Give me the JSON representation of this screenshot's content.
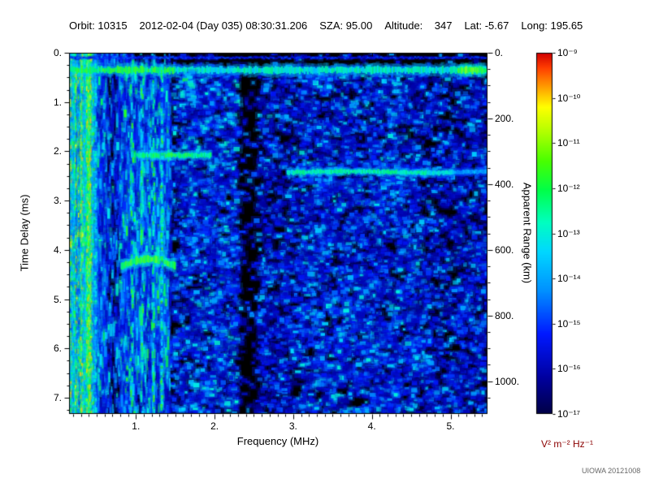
{
  "header": {
    "items": [
      "Orbit: 10315",
      "2012-02-04 (Day 035) 08:30:31.206",
      "SZA: 95.00",
      "Altitude:    347",
      "Lat: -5.67",
      "Long: 195.65"
    ]
  },
  "footer": {
    "credit": "UIOWA 20121008"
  },
  "colors": {
    "unit_label": "#8b0000",
    "plot_background": "#000000",
    "text": "#000000"
  },
  "chart_data": {
    "type": "heatmap",
    "subtype": "radar-ionogram-spectrogram",
    "xlabel": "Frequency (MHz)",
    "ylabel_left": "Time Delay (ms)",
    "ylabel_right": "Apparent Range (km)",
    "x_range": [
      0.15,
      5.47
    ],
    "y_range": [
      0,
      7.33
    ],
    "x_minor_step": 0.1,
    "y_minor_step": 0.25,
    "km_per_ms": 150,
    "y_right_minor_step_km": 50,
    "x_ticks": [
      {
        "v": 1,
        "label": "1."
      },
      {
        "v": 2,
        "label": "2."
      },
      {
        "v": 3,
        "label": "3."
      },
      {
        "v": 4,
        "label": "4."
      },
      {
        "v": 5,
        "label": "5."
      }
    ],
    "y_ticks_left": [
      {
        "v": 0,
        "label": "0."
      },
      {
        "v": 1,
        "label": "1."
      },
      {
        "v": 2,
        "label": "2."
      },
      {
        "v": 3,
        "label": "3."
      },
      {
        "v": 4,
        "label": "4."
      },
      {
        "v": 5,
        "label": "5."
      },
      {
        "v": 6,
        "label": "6."
      },
      {
        "v": 7,
        "label": "7."
      }
    ],
    "y_ticks_right": [
      {
        "km": 0,
        "label": "0."
      },
      {
        "km": 200,
        "label": "200."
      },
      {
        "km": 400,
        "label": "400."
      },
      {
        "km": 600,
        "label": "600."
      },
      {
        "km": 800,
        "label": "800."
      },
      {
        "km": 1000,
        "label": "1000."
      }
    ],
    "colorbar": {
      "max": "10⁻⁹",
      "min": "10⁻¹⁷",
      "ticks": [
        "10⁻⁹",
        "10⁻¹⁰",
        "10⁻¹¹",
        "10⁻¹²",
        "10⁻¹³",
        "10⁻¹⁴",
        "10⁻¹⁵",
        "10⁻¹⁶",
        "10⁻¹⁷"
      ],
      "unit": "V² m⁻² Hz⁻¹"
    },
    "colormap": [
      [
        0.0,
        "#000046"
      ],
      [
        0.1,
        "#0000a0"
      ],
      [
        0.22,
        "#0018ff"
      ],
      [
        0.34,
        "#0090ff"
      ],
      [
        0.45,
        "#00d8ff"
      ],
      [
        0.53,
        "#00ffc0"
      ],
      [
        0.62,
        "#00ff48"
      ],
      [
        0.7,
        "#48ff00"
      ],
      [
        0.78,
        "#b0ff00"
      ],
      [
        0.85,
        "#ffff00"
      ],
      [
        0.9,
        "#ffa800"
      ],
      [
        0.96,
        "#ff3c00"
      ],
      [
        1.0,
        "#d00000"
      ]
    ],
    "background_color": "#000000",
    "noise": {
      "seed": 20121008,
      "samples": 30000,
      "segments": [
        {
          "f0": 0.15,
          "f1": 0.45,
          "density": 1.0,
          "vmax": 0.85
        },
        {
          "f0": 0.45,
          "f1": 0.62,
          "density": 0.8,
          "vmax": 0.62
        },
        {
          "f0": 0.62,
          "f1": 0.8,
          "density": 0.32,
          "vmax": 0.55
        },
        {
          "f0": 0.8,
          "f1": 1.42,
          "density": 0.78,
          "vmax": 0.66
        },
        {
          "f0": 1.42,
          "f1": 1.58,
          "density": 0.3,
          "vmax": 0.5
        },
        {
          "f0": 1.58,
          "f1": 2.3,
          "density": 0.46,
          "vmax": 0.52
        },
        {
          "f0": 2.3,
          "f1": 2.56,
          "density": 0.07,
          "vmax": 0.4
        },
        {
          "f0": 2.56,
          "f1": 3.1,
          "density": 0.32,
          "vmax": 0.46
        },
        {
          "f0": 3.1,
          "f1": 4.6,
          "density": 0.42,
          "vmax": 0.5
        },
        {
          "f0": 4.6,
          "f1": 5.05,
          "density": 0.27,
          "vmax": 0.46
        },
        {
          "f0": 5.05,
          "f1": 5.47,
          "density": 0.34,
          "vmax": 0.46
        }
      ],
      "striations": {
        "f0": 0.15,
        "f1": 0.5,
        "step": 0.016,
        "vmin": 0.35,
        "vmax": 0.85
      },
      "green_columns": [
        0.95,
        1.08,
        1.22
      ]
    },
    "features": [
      {
        "kind": "hband",
        "name": "zero-delay surface band",
        "t": 0.35,
        "f0": 0.15,
        "f1": 5.47,
        "h": 7,
        "v": 0.52
      },
      {
        "kind": "hband",
        "name": "faint top-edge line",
        "t": 0.1,
        "f0": 0.15,
        "f1": 5.47,
        "h": 2,
        "v": 0.22
      },
      {
        "kind": "htrace",
        "name": "ionospheric echo trace",
        "t": 2.42,
        "f0": 2.93,
        "f1": 5.47,
        "h": 5,
        "v": 0.5
      },
      {
        "kind": "hblob",
        "name": "low-frequency echo segment",
        "t": 4.33,
        "f0": 0.82,
        "f1": 1.5,
        "h": 9,
        "v": 0.62,
        "arc": 0.14
      },
      {
        "kind": "hblob",
        "name": "mid echo segment",
        "t": 2.08,
        "f0": 1.02,
        "f1": 1.95,
        "h": 6,
        "v": 0.56,
        "arc": 0.0
      },
      {
        "kind": "hblob",
        "name": "right-end bright knot",
        "t": 0.35,
        "f0": 5.1,
        "f1": 5.45,
        "h": 8,
        "v": 0.66,
        "arc": 0.0
      },
      {
        "kind": "vline",
        "name": "plasma resonance line",
        "f": 1.33,
        "t0": 0.15,
        "t1": 7.33,
        "w": 3,
        "v": 0.5
      },
      {
        "kind": "vblob",
        "name": "cyan patch below band",
        "f": 1.68,
        "t0": 0.4,
        "t1": 1.0,
        "w": 14,
        "v": 0.5
      }
    ]
  }
}
